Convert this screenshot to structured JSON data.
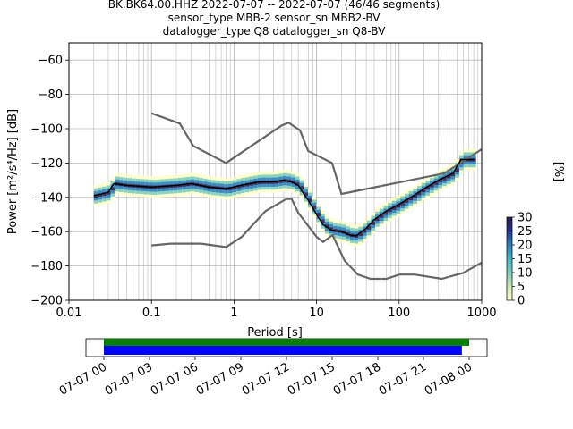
{
  "chart_data": {
    "type": "heatmap",
    "title_lines": [
      "BK.BK64.00.HHZ   2022-07-07 -- 2022-07-07  (46/46 segments)",
      "sensor_type MBB-2 sensor_sn MBB2-BV",
      "datalogger_type Q8 datalogger_sn Q8-BV"
    ],
    "xlabel": "Period [s]",
    "ylabel": "Power [m²/s⁴/Hz] [dB]",
    "xscale": "log",
    "xlim": [
      0.01,
      1000
    ],
    "ylim": [
      -200,
      -50
    ],
    "grid": true,
    "x_ticks": [
      {
        "v": 0.01,
        "label": "0.01"
      },
      {
        "v": 0.1,
        "label": "0.1"
      },
      {
        "v": 1,
        "label": "1"
      },
      {
        "v": 10,
        "label": "10"
      },
      {
        "v": 100,
        "label": "100"
      },
      {
        "v": 1000,
        "label": "1000"
      }
    ],
    "y_ticks": [
      {
        "v": -60,
        "label": "−60"
      },
      {
        "v": -80,
        "label": "−80"
      },
      {
        "v": -100,
        "label": "−100"
      },
      {
        "v": -120,
        "label": "−120"
      },
      {
        "v": -140,
        "label": "−140"
      },
      {
        "v": -160,
        "label": "−160"
      },
      {
        "v": -180,
        "label": "−180"
      },
      {
        "v": -200,
        "label": "−200"
      }
    ],
    "nhnm": [
      [
        0.1,
        -91
      ],
      [
        0.22,
        -97
      ],
      [
        0.32,
        -110
      ],
      [
        0.8,
        -120
      ],
      [
        3.8,
        -98
      ],
      [
        4.6,
        -96.5
      ],
      [
        6.3,
        -101
      ],
      [
        7.9,
        -113
      ],
      [
        15.4,
        -120
      ],
      [
        20,
        -138
      ],
      [
        354,
        -126
      ],
      [
        1000,
        -112
      ]
    ],
    "nlnm": [
      [
        0.1,
        -168
      ],
      [
        0.17,
        -167
      ],
      [
        0.4,
        -167
      ],
      [
        0.8,
        -169
      ],
      [
        1.24,
        -163
      ],
      [
        2.4,
        -148
      ],
      [
        4.3,
        -141
      ],
      [
        5,
        -141
      ],
      [
        6,
        -149
      ],
      [
        10,
        -163
      ],
      [
        12,
        -166
      ],
      [
        15.6,
        -162
      ],
      [
        21.9,
        -177
      ],
      [
        31.6,
        -185
      ],
      [
        45,
        -187.5
      ],
      [
        70,
        -187.5
      ],
      [
        101,
        -185
      ],
      [
        154,
        -185
      ],
      [
        328,
        -187.5
      ],
      [
        600,
        -184
      ],
      [
        1000,
        -178
      ]
    ],
    "mean_psd": [
      [
        0.02,
        -139
      ],
      [
        0.025,
        -138
      ],
      [
        0.03,
        -137
      ],
      [
        0.035,
        -132
      ],
      [
        0.05,
        -133
      ],
      [
        0.1,
        -134
      ],
      [
        0.2,
        -133
      ],
      [
        0.3,
        -132
      ],
      [
        0.5,
        -134
      ],
      [
        0.8,
        -135
      ],
      [
        1.2,
        -133
      ],
      [
        2,
        -131
      ],
      [
        3,
        -131
      ],
      [
        4,
        -130
      ],
      [
        5,
        -131
      ],
      [
        6,
        -133
      ],
      [
        7,
        -138
      ],
      [
        8,
        -142
      ],
      [
        10,
        -150
      ],
      [
        12,
        -156
      ],
      [
        15,
        -159
      ],
      [
        20,
        -160
      ],
      [
        25,
        -162
      ],
      [
        30,
        -162.5
      ],
      [
        35,
        -160
      ],
      [
        40,
        -158
      ],
      [
        50,
        -153
      ],
      [
        70,
        -148
      ],
      [
        100,
        -144
      ],
      [
        150,
        -139
      ],
      [
        200,
        -135
      ],
      [
        300,
        -130
      ],
      [
        450,
        -126
      ],
      [
        560,
        -118
      ],
      [
        800,
        -118
      ]
    ],
    "psd_spread_db": 3.5,
    "colorbar": {
      "label": "[%]",
      "range": [
        0,
        30
      ],
      "ticks": [
        "0",
        "5",
        "10",
        "15",
        "20",
        "25",
        "30"
      ]
    },
    "colormap": [
      "#ffffcc",
      "#c7e9b4",
      "#7fcdbb",
      "#41b6c4",
      "#2c7fb8",
      "#253494",
      "#2d1a4a"
    ],
    "line_colors": {
      "models": "#666666",
      "mean": "#000000",
      "grid": "#bbbbbb"
    },
    "timeline": {
      "tick_labels": [
        "07-07 00",
        "07-07 03",
        "07-07 06",
        "07-07 09",
        "07-07 12",
        "07-07 15",
        "07-07 18",
        "07-07 21",
        "07-08 00"
      ],
      "green_bar_fraction": [
        0.0,
        1.0
      ],
      "blue_bar_fraction": [
        0.0,
        0.98
      ],
      "colors": {
        "green": "#008000",
        "blue": "#0000ff"
      }
    }
  }
}
